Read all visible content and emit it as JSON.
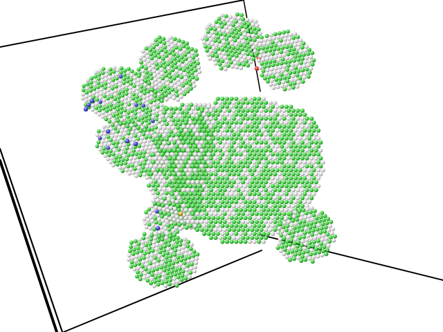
{
  "scene": {
    "kind": "molecular-visualization",
    "subject": "nanoparticle-cluster",
    "background_color": "#ffffff",
    "frame_color": "#000000",
    "atom_colors": {
      "hydrogen": "#f2f2f2",
      "carbon": "#4bd94b",
      "nitrogen": "#4a4ad6",
      "oxygen": "#e04040",
      "sulfur": "#e8b030"
    },
    "particle_names": [
      "particle-top-right-a",
      "particle-top-right-b",
      "particle-top-left",
      "particle-left-upper",
      "particle-left-middle",
      "particle-large-center",
      "particle-slab",
      "particle-bottom-right",
      "particle-bottom-left",
      "particle-small-bottom"
    ]
  }
}
